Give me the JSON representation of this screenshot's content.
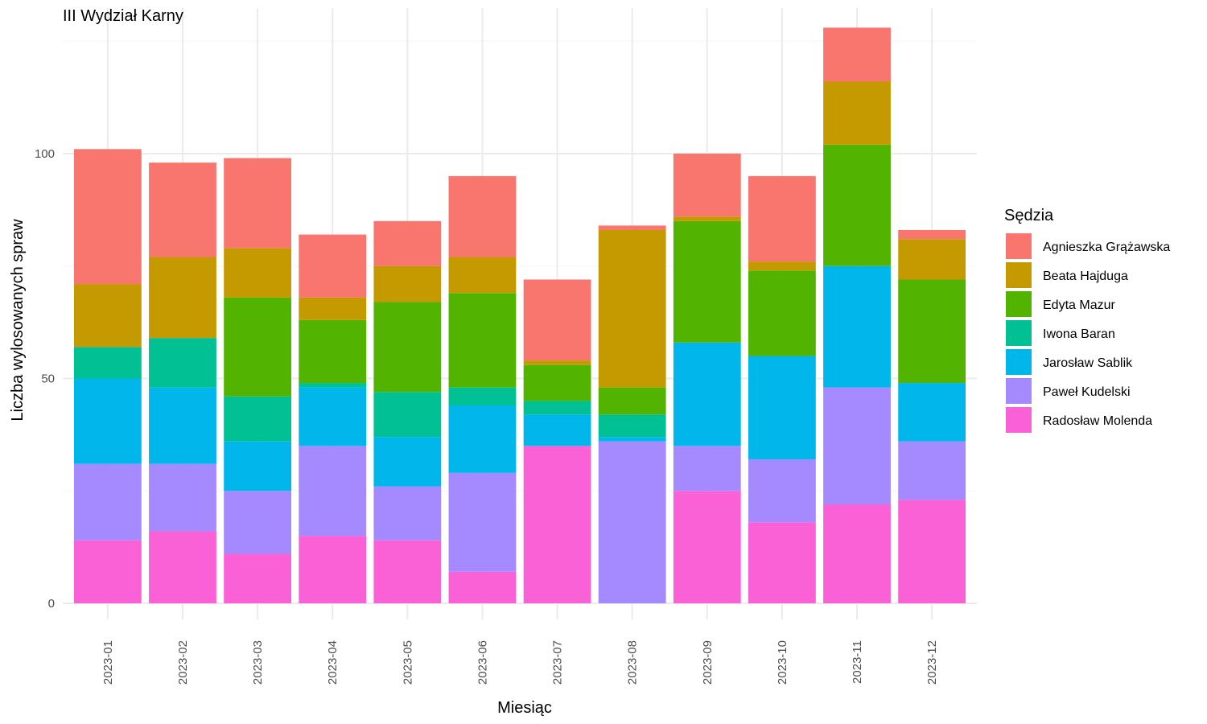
{
  "chart_data": {
    "type": "bar",
    "stacked": true,
    "title": "III Wydział Karny",
    "xlabel": "Miesiąc",
    "ylabel": "Liczba wylosowanych spraw",
    "ylim": [
      0,
      127
    ],
    "yticks": [
      0,
      50,
      100
    ],
    "grid": true,
    "legend_title": "Sędzia",
    "legend_position": "right",
    "categories": [
      "2023-01",
      "2023-02",
      "2023-03",
      "2023-04",
      "2023-05",
      "2023-06",
      "2023-07",
      "2023-08",
      "2023-09",
      "2023-10",
      "2023-11",
      "2023-12"
    ],
    "series": [
      {
        "name": "Agnieszka Grążawska",
        "color": "#F8766D",
        "values": [
          30,
          21,
          20,
          14,
          10,
          18,
          18,
          1,
          14,
          19,
          12,
          2
        ]
      },
      {
        "name": "Beata Hajduga",
        "color": "#C49A00",
        "values": [
          14,
          18,
          11,
          5,
          8,
          8,
          1,
          35,
          1,
          2,
          14,
          9
        ]
      },
      {
        "name": "Edyta Mazur",
        "color": "#53B400",
        "values": [
          0,
          0,
          22,
          14,
          20,
          21,
          8,
          6,
          27,
          19,
          27,
          23
        ]
      },
      {
        "name": "Iwona Baran",
        "color": "#00C094",
        "values": [
          7,
          11,
          10,
          1,
          10,
          4,
          3,
          5,
          0,
          0,
          0,
          0
        ]
      },
      {
        "name": "Jarosław Sablik",
        "color": "#00B6EB",
        "values": [
          19,
          17,
          11,
          13,
          11,
          15,
          7,
          1,
          23,
          23,
          27,
          13
        ]
      },
      {
        "name": "Paweł Kudelski",
        "color": "#A58AFF",
        "values": [
          17,
          15,
          14,
          20,
          12,
          22,
          0,
          36,
          10,
          14,
          26,
          13
        ]
      },
      {
        "name": "Radosław Molenda",
        "color": "#FB61D7",
        "values": [
          14,
          16,
          11,
          15,
          14,
          7,
          35,
          0,
          25,
          18,
          22,
          23
        ]
      }
    ]
  }
}
